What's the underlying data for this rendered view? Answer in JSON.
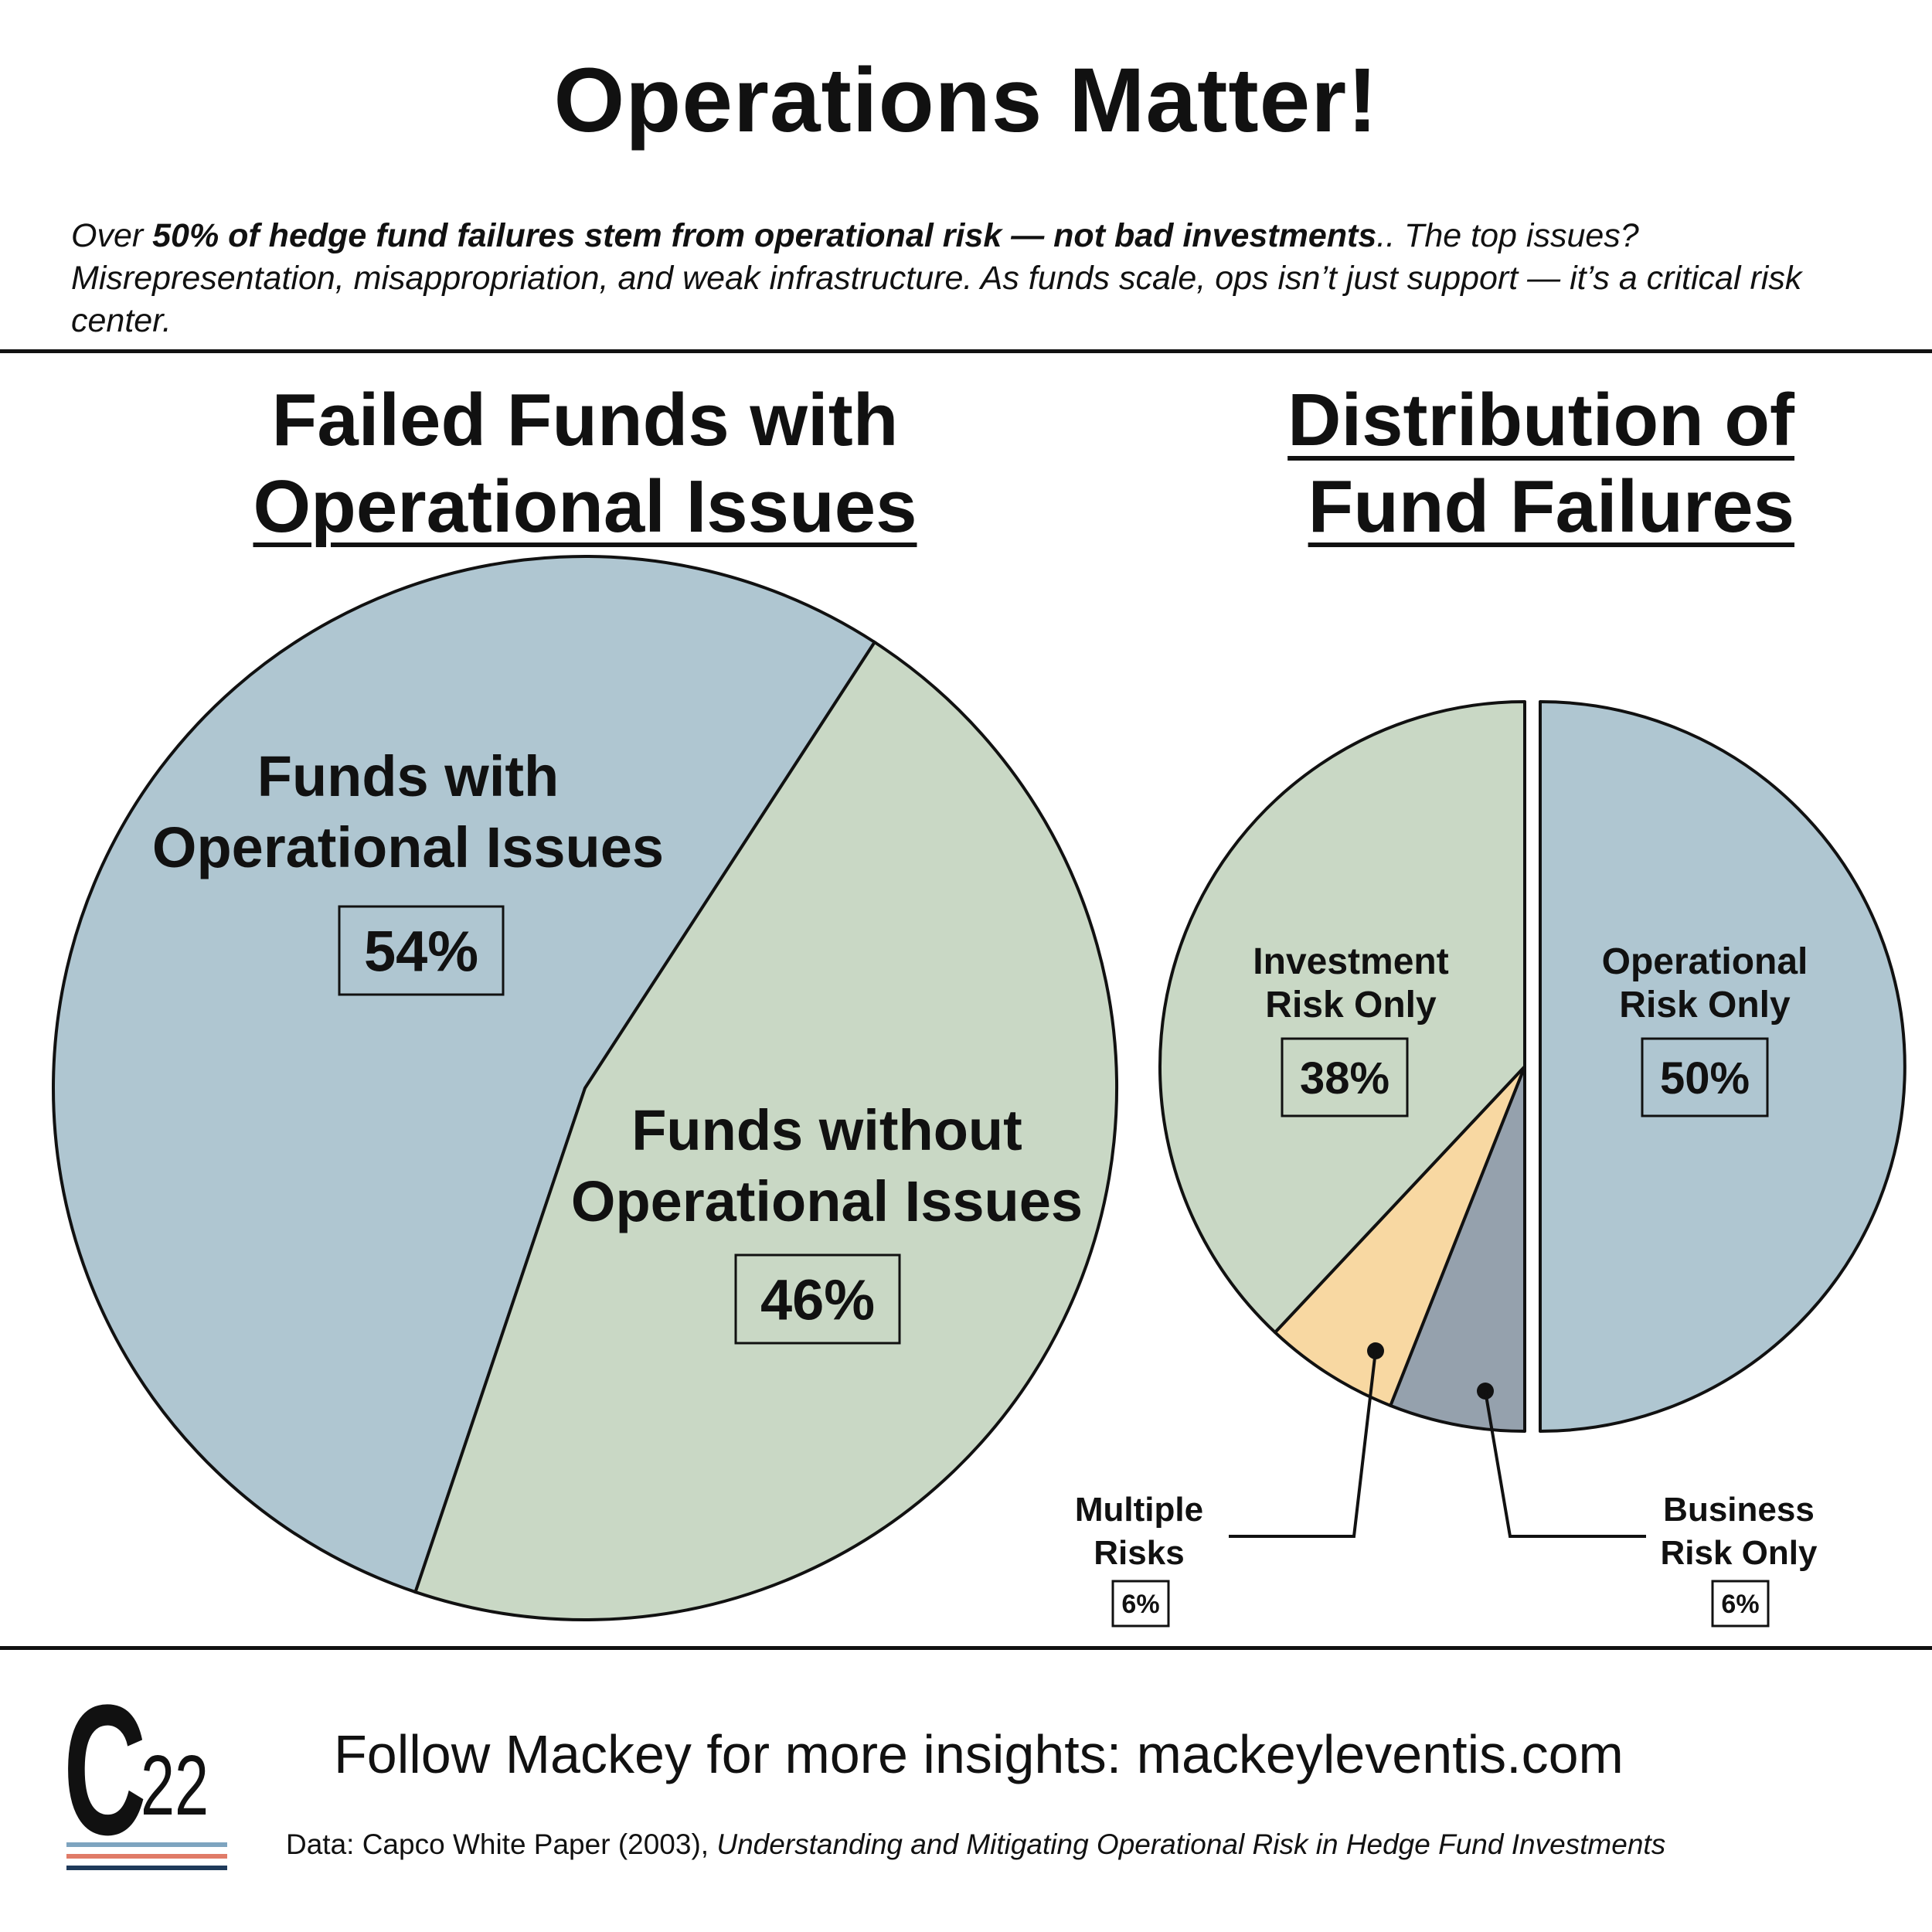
{
  "header": {
    "title": "Operations Matter!",
    "intro_pre": "Over ",
    "intro_bold": "50% of hedge fund failures stem from operational risk — not bad investments",
    "intro_post": ".. The top issues? Misrepresentation, misappropriation, and weak infrastructure. As funds scale, ops isn’t just support — it’s a critical risk center."
  },
  "chart_data": [
    {
      "type": "pie",
      "title": "Failed Funds with Operational Issues",
      "title_lines": [
        "Failed Funds with",
        "Operational Issues"
      ],
      "slices": [
        {
          "label": "Funds with Operational Issues",
          "label_lines": [
            "Funds with",
            "Operational Issues"
          ],
          "value": 54,
          "display": "54%",
          "color": "#afc6d1"
        },
        {
          "label": "Funds without Operational Issues",
          "label_lines": [
            "Funds without",
            "Operational Issues"
          ],
          "value": 46,
          "display": "46%",
          "color": "#c9d8c5"
        }
      ]
    },
    {
      "type": "pie",
      "title": "Distribution of Fund Failures",
      "title_lines": [
        "Distribution of",
        "Fund Failures"
      ],
      "exploded": "Operational Risk Only",
      "slices": [
        {
          "label": "Operational Risk Only",
          "label_lines": [
            "Operational",
            "Risk Only"
          ],
          "value": 50,
          "display": "50%",
          "color": "#afc6d1"
        },
        {
          "label": "Business Risk Only",
          "label_lines": [
            "Business",
            "Risk Only"
          ],
          "value": 6,
          "display": "6%",
          "color": "#95a1ad"
        },
        {
          "label": "Multiple Risks",
          "label_lines": [
            "Multiple",
            "Risks"
          ],
          "value": 6,
          "display": "6%",
          "color": "#f8d8a2"
        },
        {
          "label": "Investment Risk Only",
          "label_lines": [
            "Investment",
            "Risk Only"
          ],
          "value": 38,
          "display": "38%",
          "color": "#c9d8c5"
        }
      ]
    }
  ],
  "footer": {
    "logo_letter": "C",
    "logo_number": "22",
    "logo_stripe_colors": [
      "#7ea4bf",
      "#e07b68",
      "#1f3a5a"
    ],
    "follow_text": "Follow Mackey for more insights: mackeyleventis.com",
    "source_plain": "Data: Capco White Paper (2003), ",
    "source_italic": "Understanding and Mitigating Operational Risk in Hedge Fund Investments"
  }
}
